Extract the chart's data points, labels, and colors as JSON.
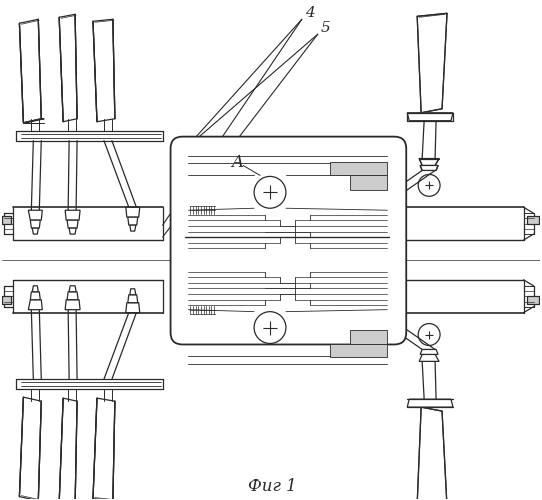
{
  "title": "Фиг 1",
  "background": "#ffffff",
  "line_color": "#2a2a2a",
  "label_4": "4",
  "label_5": "5",
  "label_A": "A",
  "figsize": [
    5.42,
    5.0
  ],
  "dpi": 100
}
